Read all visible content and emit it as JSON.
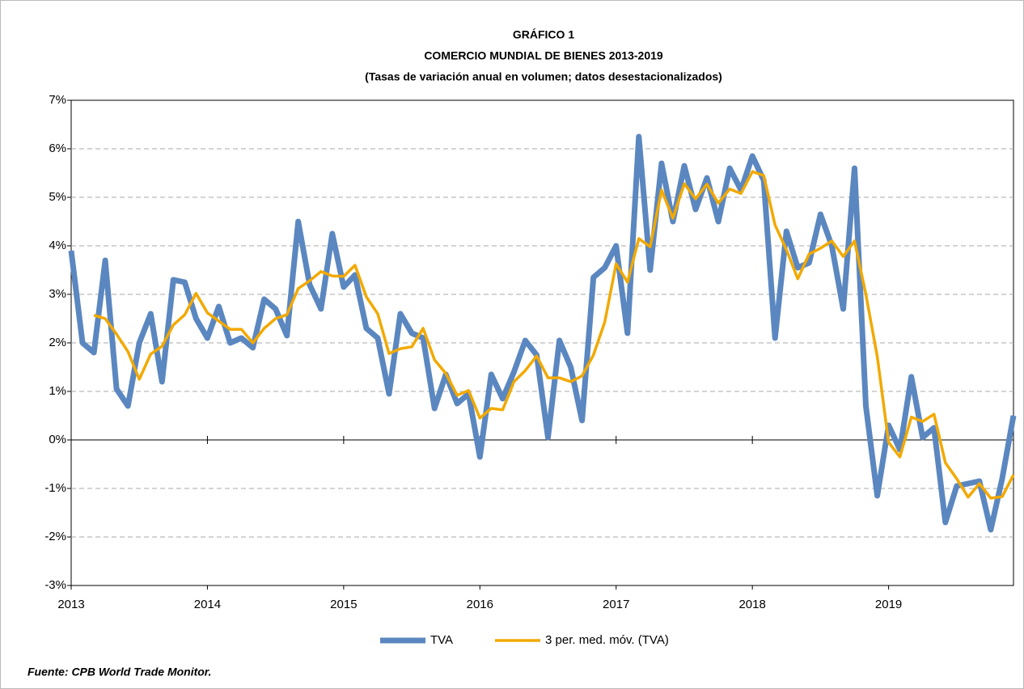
{
  "chart_data": {
    "type": "line",
    "title": "GRÁFICO 1",
    "subtitle": "COMERCIO MUNDIAL DE BIENES 2013-2019",
    "subtitle2": "(Tasas de variación anual en volumen; datos desestacionalizados)",
    "source": "Fuente: CPB World Trade Monitor.",
    "categories": [
      "2013",
      null,
      null,
      null,
      null,
      null,
      null,
      null,
      null,
      null,
      null,
      null,
      "2014",
      null,
      null,
      null,
      null,
      null,
      null,
      null,
      null,
      null,
      null,
      null,
      "2015",
      null,
      null,
      null,
      null,
      null,
      null,
      null,
      null,
      null,
      null,
      null,
      "2016",
      null,
      null,
      null,
      null,
      null,
      null,
      null,
      null,
      null,
      null,
      null,
      "2017",
      null,
      null,
      null,
      null,
      null,
      null,
      null,
      null,
      null,
      null,
      null,
      "2018",
      null,
      null,
      null,
      null,
      null,
      null,
      null,
      null,
      null,
      null,
      null,
      "2019",
      null,
      null,
      null,
      null,
      null,
      null,
      null,
      null,
      null,
      null,
      null
    ],
    "series": [
      {
        "name": "TVA",
        "color": "#5b87c0",
        "values": [
          3.9,
          2.0,
          1.8,
          3.7,
          1.05,
          0.7,
          2.0,
          2.6,
          1.2,
          3.3,
          3.25,
          2.5,
          2.1,
          2.75,
          2.0,
          2.1,
          1.9,
          2.9,
          2.7,
          2.15,
          4.5,
          3.2,
          2.7,
          4.25,
          3.15,
          3.4,
          2.3,
          2.1,
          0.95,
          2.6,
          2.2,
          2.1,
          0.65,
          1.35,
          0.75,
          0.95,
          -0.35,
          1.35,
          0.85,
          1.4,
          2.05,
          1.75,
          0.05,
          2.05,
          1.5,
          0.4,
          3.35,
          3.55,
          4.0,
          2.2,
          6.25,
          3.5,
          5.7,
          4.5,
          5.65,
          4.75,
          5.4,
          4.5,
          5.6,
          5.15,
          5.85,
          5.35,
          2.1,
          4.3,
          3.55,
          3.65,
          4.65,
          4.0,
          2.7,
          5.6,
          0.7,
          -1.15,
          0.3,
          -0.2,
          1.3,
          0.05,
          0.25,
          -1.7,
          -0.95,
          -0.9,
          -0.85,
          -1.85,
          -0.8,
          0.5
        ]
      },
      {
        "name": "3 per. med. móv. (TVA)",
        "color": "#f2a900",
        "values": [
          null,
          null,
          2.57,
          2.5,
          2.18,
          1.82,
          1.25,
          1.77,
          1.93,
          2.37,
          2.58,
          3.02,
          2.62,
          2.45,
          2.28,
          2.28,
          2.0,
          2.3,
          2.5,
          2.58,
          3.12,
          3.28,
          3.47,
          3.38,
          3.37,
          3.6,
          2.95,
          2.6,
          1.78,
          1.88,
          1.92,
          2.3,
          1.65,
          1.37,
          0.92,
          1.02,
          0.45,
          0.65,
          0.62,
          1.2,
          1.43,
          1.73,
          1.28,
          1.28,
          1.2,
          1.32,
          1.75,
          2.43,
          3.63,
          3.25,
          4.15,
          3.98,
          5.15,
          4.57,
          5.28,
          4.97,
          5.27,
          4.88,
          5.17,
          5.08,
          5.53,
          5.45,
          4.43,
          3.92,
          3.32,
          3.83,
          3.95,
          4.1,
          3.78,
          4.1,
          3.0,
          1.72,
          -0.05,
          -0.35,
          0.47,
          0.38,
          0.53,
          -0.47,
          -0.8,
          -1.18,
          -0.9,
          -1.2,
          -1.17,
          -0.72
        ]
      }
    ],
    "ylim": [
      -3,
      7
    ],
    "yticks": [
      {
        "value": -3,
        "label": "-3%"
      },
      {
        "value": -2,
        "label": "-2%"
      },
      {
        "value": -1,
        "label": "-1%"
      },
      {
        "value": 0,
        "label": "0%"
      },
      {
        "value": 1,
        "label": "1%"
      },
      {
        "value": 2,
        "label": "2%"
      },
      {
        "value": 3,
        "label": "3%"
      },
      {
        "value": 4,
        "label": "4%"
      },
      {
        "value": 5,
        "label": "5%"
      },
      {
        "value": 6,
        "label": "6%"
      },
      {
        "value": 7,
        "label": "7%"
      }
    ],
    "grid": true,
    "legend": "bottom"
  }
}
